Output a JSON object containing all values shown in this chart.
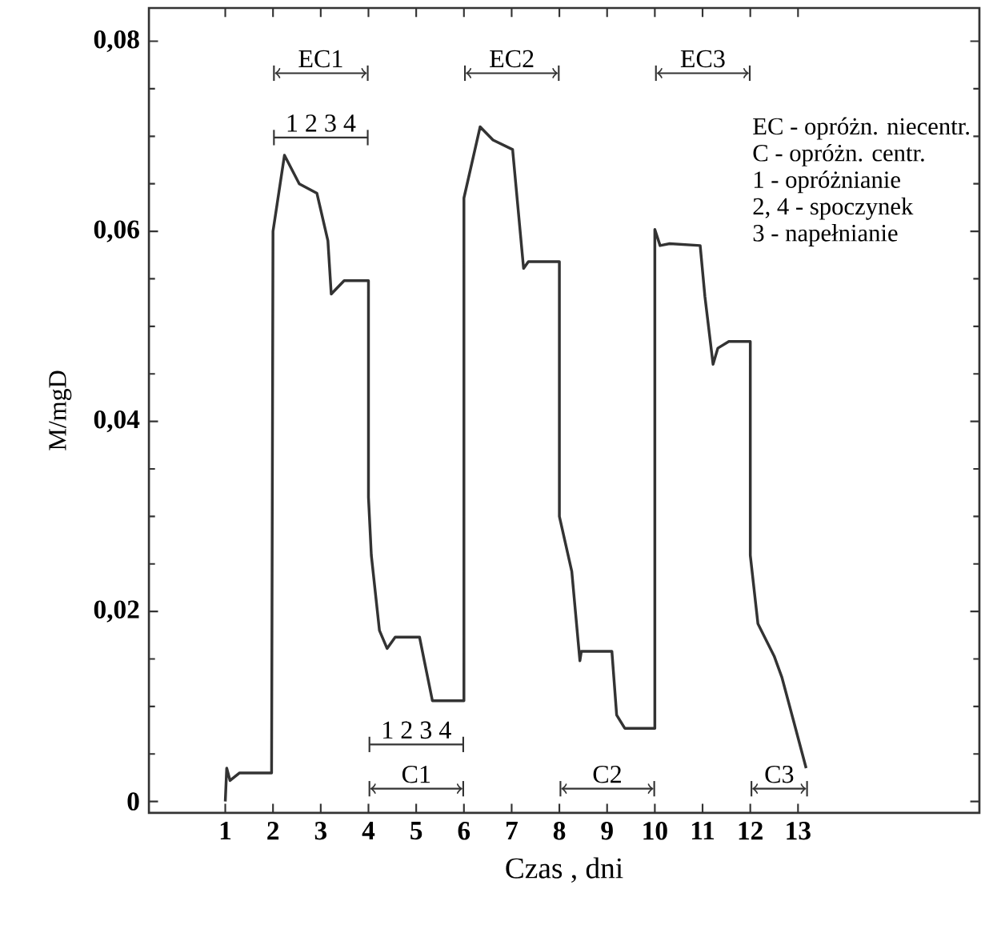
{
  "chart_data": {
    "type": "line",
    "xlabel": "Czas , dni",
    "ylabel": "M/mgD",
    "x": [
      1.0,
      1.03,
      1.1,
      1.3,
      1.97,
      2.0,
      2.24,
      2.55,
      2.92,
      3.15,
      3.22,
      3.49,
      4.0,
      4.0,
      4.06,
      4.23,
      4.39,
      4.56,
      5.07,
      5.17,
      5.34,
      6.0,
      6.0,
      6.34,
      6.61,
      7.02,
      7.25,
      7.35,
      8.0,
      8.0,
      8.26,
      8.43,
      8.46,
      9.1,
      9.2,
      9.37,
      10.0,
      10.0,
      10.11,
      10.31,
      10.95,
      11.05,
      11.22,
      11.32,
      11.55,
      12.0,
      12.0,
      12.16,
      12.5,
      12.66,
      12.9,
      13.17
    ],
    "series": [
      {
        "color": "#333333",
        "values": [
          0.0,
          0.0035,
          0.0022,
          0.003,
          0.003,
          0.06,
          0.068,
          0.065,
          0.064,
          0.059,
          0.0534,
          0.0548,
          0.0548,
          0.032,
          0.0259,
          0.018,
          0.0161,
          0.0173,
          0.0173,
          0.0148,
          0.0106,
          0.0106,
          0.0635,
          0.071,
          0.0696,
          0.0686,
          0.0561,
          0.0568,
          0.0568,
          0.03,
          0.0242,
          0.0148,
          0.0158,
          0.0158,
          0.0091,
          0.0077,
          0.0077,
          0.0602,
          0.0585,
          0.0587,
          0.0585,
          0.0531,
          0.046,
          0.0477,
          0.0484,
          0.0484,
          0.0259,
          0.0187,
          0.0153,
          0.0131,
          0.0086,
          0.0035
        ]
      }
    ],
    "xlim": [
      -0.6,
      16.8
    ],
    "ylim": [
      -0.0012,
      0.0835
    ],
    "xticks": [
      1,
      2,
      3,
      4,
      5,
      6,
      7,
      8,
      9,
      10,
      11,
      12,
      13
    ],
    "yticks": [
      0,
      {
        "value": 0.02,
        "label": "0,02"
      },
      {
        "value": 0.04,
        "label": "0,04"
      },
      {
        "value": 0.06,
        "label": "0,06"
      },
      {
        "value": 0.08,
        "label": "0,08"
      }
    ],
    "grid": false,
    "marker": "none",
    "line_style": "solid",
    "annotations": [
      "EC1",
      "EC2",
      "EC3",
      "1 2 3 4",
      "1 2 3 4",
      "C1",
      "C2",
      "C3",
      "EC - opróżn. niecentr.",
      "C - opróżn. centr.",
      "1 - opróżnianie",
      "2, 4 - spoczynek",
      "3 - napełnianie"
    ]
  }
}
